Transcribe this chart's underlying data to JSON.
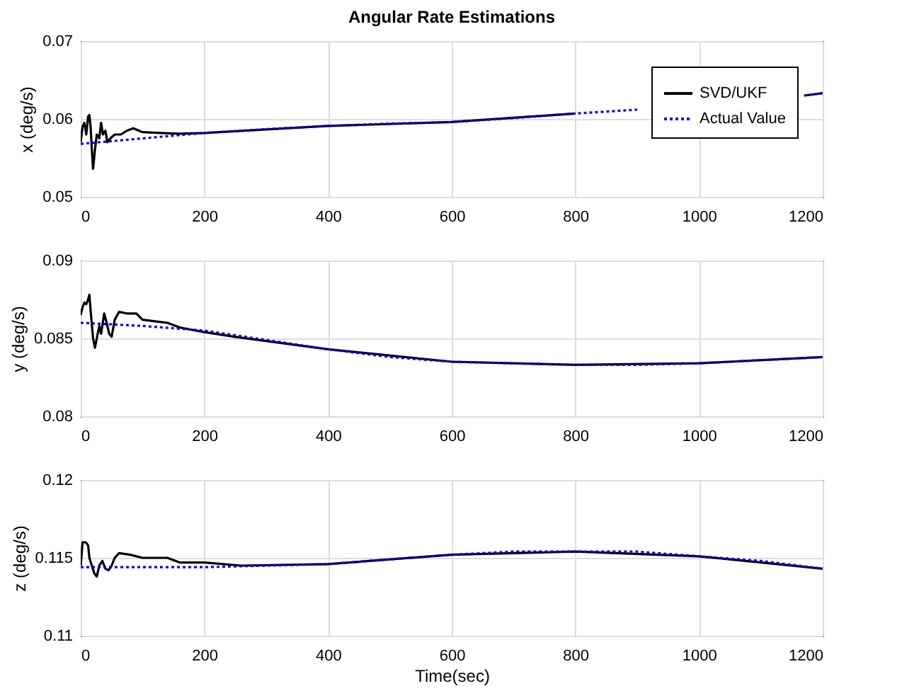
{
  "chart_data": [
    {
      "type": "line",
      "title": "Angular Rate Estimations",
      "ylabel": "x (deg/s)",
      "xlim": [
        0,
        1200
      ],
      "xticks": [
        0,
        200,
        400,
        600,
        800,
        1000,
        1200
      ],
      "ylim": [
        0.05,
        0.07
      ],
      "yticks": [
        0.05,
        0.06,
        0.07
      ],
      "grid": true,
      "legend": "top right",
      "marker": "none",
      "series": [
        {
          "name": "SVD/UKF",
          "color": "#000000",
          "line_style": "solid",
          "x": [
            0,
            3,
            6,
            9,
            12,
            14,
            16,
            18,
            20,
            23,
            26,
            30,
            33,
            36,
            40,
            43,
            48,
            55,
            65,
            75,
            85,
            100,
            130,
            160,
            200,
            400,
            600,
            800,
            1000,
            1170,
            1200
          ],
          "values": [
            0.057,
            0.059,
            0.0595,
            0.058,
            0.0603,
            0.0605,
            0.059,
            0.056,
            0.0536,
            0.056,
            0.058,
            0.0575,
            0.0595,
            0.058,
            0.0585,
            0.057,
            0.0575,
            0.058,
            0.058,
            0.0585,
            0.0588,
            0.0583,
            0.0582,
            0.0581,
            0.0582,
            0.0591,
            0.0596,
            0.0607,
            null,
            0.063,
            0.0633
          ]
        },
        {
          "name": "Actual Value",
          "color": "#0000ff",
          "line_style": "dotted",
          "x": [
            0,
            100,
            200,
            300,
            400,
            500,
            600,
            700,
            800,
            900,
            1000,
            1100,
            1170,
            1200
          ],
          "values": [
            0.0568,
            0.0575,
            0.0582,
            0.0587,
            0.0591,
            0.0594,
            0.0596,
            0.0601,
            0.0607,
            0.0612,
            null,
            null,
            0.063,
            0.0633
          ]
        }
      ]
    },
    {
      "type": "line",
      "ylabel": "y (deg/s)",
      "xlim": [
        0,
        1200
      ],
      "xticks": [
        0,
        200,
        400,
        600,
        800,
        1000,
        1200
      ],
      "ylim": [
        0.08,
        0.09
      ],
      "yticks": [
        0.08,
        0.085,
        0.09
      ],
      "grid": true,
      "legend": false,
      "marker": "none",
      "series": [
        {
          "color": "#000000",
          "line_style": "solid",
          "x": [
            0,
            3,
            6,
            9,
            12,
            14,
            16,
            20,
            23,
            26,
            30,
            33,
            38,
            42,
            46,
            50,
            55,
            62,
            75,
            90,
            100,
            120,
            140,
            160,
            200,
            250,
            400,
            600,
            800,
            1000,
            1200
          ],
          "values": [
            0.0865,
            0.087,
            0.0873,
            0.0872,
            0.0875,
            0.0878,
            0.0868,
            0.085,
            0.0844,
            0.085,
            0.0858,
            0.0853,
            0.0866,
            0.086,
            0.0853,
            0.0851,
            0.0862,
            0.0867,
            0.0866,
            0.0866,
            0.0862,
            0.0861,
            0.086,
            0.0857,
            0.0854,
            0.0851,
            0.0843,
            0.0835,
            0.0833,
            0.0834,
            0.0838
          ]
        },
        {
          "color": "#0000ff",
          "line_style": "dotted",
          "x": [
            0,
            100,
            200,
            300,
            400,
            500,
            600,
            700,
            800,
            900,
            1000,
            1100,
            1200
          ],
          "values": [
            0.086,
            0.0858,
            0.0855,
            0.0849,
            0.0843,
            0.0838,
            0.0835,
            0.0834,
            0.0833,
            0.0833,
            0.0834,
            0.0836,
            0.0838
          ]
        }
      ]
    },
    {
      "type": "line",
      "ylabel": "z (deg/s)",
      "xlabel": "Time(sec)",
      "xlim": [
        0,
        1200
      ],
      "xticks": [
        0,
        200,
        400,
        600,
        800,
        1000,
        1200
      ],
      "ylim": [
        0.11,
        0.12
      ],
      "yticks": [
        0.11,
        0.115,
        0.12
      ],
      "grid": true,
      "legend": false,
      "marker": "none",
      "series": [
        {
          "color": "#000000",
          "line_style": "solid",
          "x": [
            0,
            3,
            8,
            12,
            14,
            18,
            22,
            26,
            30,
            35,
            40,
            45,
            50,
            55,
            62,
            80,
            100,
            140,
            160,
            200,
            260,
            400,
            600,
            800,
            1000,
            1200
          ],
          "values": [
            0.1145,
            0.116,
            0.116,
            0.1158,
            0.115,
            0.1145,
            0.114,
            0.1138,
            0.1145,
            0.1148,
            0.1143,
            0.1142,
            0.1145,
            0.115,
            0.1153,
            0.1152,
            0.115,
            0.115,
            0.1147,
            0.1147,
            0.1145,
            0.1146,
            0.1152,
            0.1154,
            0.1151,
            0.1143
          ]
        },
        {
          "color": "#0000ff",
          "line_style": "dotted",
          "x": [
            0,
            100,
            200,
            300,
            400,
            500,
            600,
            700,
            800,
            900,
            1000,
            1100,
            1200
          ],
          "values": [
            0.1144,
            0.1144,
            0.1144,
            0.1145,
            0.1146,
            0.1149,
            0.1152,
            0.1154,
            0.1154,
            0.1154,
            0.1151,
            0.1148,
            0.1143
          ]
        }
      ]
    }
  ]
}
